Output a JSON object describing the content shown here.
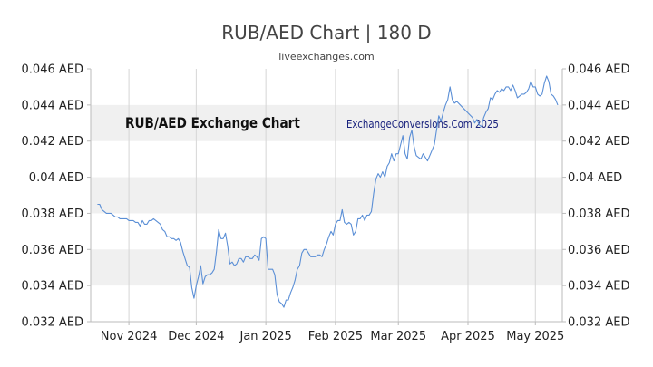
{
  "header": {
    "title": "RUB/AED Chart | 180 D",
    "subtitle": "liveexchanges.com"
  },
  "watermark": {
    "left": "RUB/AED Exchange Chart",
    "right": "ExchangeConversions.Com 2025"
  },
  "colors": {
    "line": "#5b8fd6",
    "band": "#f0f0f0",
    "grid": "#d6d6d6",
    "axis": "#bbbbbb"
  },
  "chart_data": {
    "type": "line",
    "title": "RUB/AED Chart | 180 D",
    "xlabel": "",
    "ylabel": "",
    "ylim": [
      0.032,
      0.046
    ],
    "grid": true,
    "legend": "none",
    "y_ticks": [
      {
        "value": 0.046,
        "label": "0.046 AED"
      },
      {
        "value": 0.044,
        "label": "0.044 AED"
      },
      {
        "value": 0.042,
        "label": "0.042 AED"
      },
      {
        "value": 0.04,
        "label": "0.04 AED"
      },
      {
        "value": 0.038,
        "label": "0.038 AED"
      },
      {
        "value": 0.036,
        "label": "0.036 AED"
      },
      {
        "value": 0.034,
        "label": "0.034 AED"
      },
      {
        "value": 0.032,
        "label": "0.032 AED"
      }
    ],
    "x_ticks": [
      {
        "date": "2024-11-01",
        "label": "Nov 2024"
      },
      {
        "date": "2024-12-01",
        "label": "Dec 2024"
      },
      {
        "date": "2025-01-01",
        "label": "Jan 2025"
      },
      {
        "date": "2025-02-01",
        "label": "Feb 2025"
      },
      {
        "date": "2025-03-01",
        "label": "Mar 2025"
      },
      {
        "date": "2025-04-01",
        "label": "Apr 2025"
      },
      {
        "date": "2025-05-01",
        "label": "May 2025"
      }
    ],
    "xlim": [
      "2024-10-15",
      "2025-05-13"
    ],
    "series": [
      {
        "points": [
          [
            "2024-10-18",
            0.0385
          ],
          [
            "2024-10-19",
            0.0385
          ],
          [
            "2024-10-20",
            0.0382
          ],
          [
            "2024-10-21",
            0.0381
          ],
          [
            "2024-10-22",
            0.038
          ],
          [
            "2024-10-23",
            0.038
          ],
          [
            "2024-10-24",
            0.038
          ],
          [
            "2024-10-25",
            0.0379
          ],
          [
            "2024-10-26",
            0.0378
          ],
          [
            "2024-10-27",
            0.0378
          ],
          [
            "2024-10-28",
            0.0377
          ],
          [
            "2024-10-29",
            0.0377
          ],
          [
            "2024-10-30",
            0.0377
          ],
          [
            "2024-10-31",
            0.0377
          ],
          [
            "2024-11-01",
            0.0376
          ],
          [
            "2024-11-02",
            0.0376
          ],
          [
            "2024-11-03",
            0.0376
          ],
          [
            "2024-11-04",
            0.0375
          ],
          [
            "2024-11-05",
            0.0375
          ],
          [
            "2024-11-06",
            0.0373
          ],
          [
            "2024-11-07",
            0.0376
          ],
          [
            "2024-11-08",
            0.0374
          ],
          [
            "2024-11-09",
            0.0374
          ],
          [
            "2024-11-10",
            0.0376
          ],
          [
            "2024-11-11",
            0.0376
          ],
          [
            "2024-11-12",
            0.0377
          ],
          [
            "2024-11-13",
            0.0376
          ],
          [
            "2024-11-14",
            0.0375
          ],
          [
            "2024-11-15",
            0.0374
          ],
          [
            "2024-11-16",
            0.0371
          ],
          [
            "2024-11-17",
            0.037
          ],
          [
            "2024-11-18",
            0.0367
          ],
          [
            "2024-11-19",
            0.0367
          ],
          [
            "2024-11-20",
            0.0366
          ],
          [
            "2024-11-21",
            0.0366
          ],
          [
            "2024-11-22",
            0.0365
          ],
          [
            "2024-11-23",
            0.0366
          ],
          [
            "2024-11-24",
            0.0364
          ],
          [
            "2024-11-25",
            0.0359
          ],
          [
            "2024-11-26",
            0.0355
          ],
          [
            "2024-11-27",
            0.0351
          ],
          [
            "2024-11-28",
            0.035
          ],
          [
            "2024-11-29",
            0.0339
          ],
          [
            "2024-11-30",
            0.0333
          ],
          [
            "2024-12-01",
            0.034
          ],
          [
            "2024-12-02",
            0.0345
          ],
          [
            "2024-12-03",
            0.0351
          ],
          [
            "2024-12-04",
            0.0341
          ],
          [
            "2024-12-05",
            0.0345
          ],
          [
            "2024-12-06",
            0.0346
          ],
          [
            "2024-12-07",
            0.0346
          ],
          [
            "2024-12-08",
            0.0347
          ],
          [
            "2024-12-09",
            0.0349
          ],
          [
            "2024-12-10",
            0.0359
          ],
          [
            "2024-12-11",
            0.0371
          ],
          [
            "2024-12-12",
            0.0366
          ],
          [
            "2024-12-13",
            0.0366
          ],
          [
            "2024-12-14",
            0.0369
          ],
          [
            "2024-12-15",
            0.0362
          ],
          [
            "2024-12-16",
            0.0352
          ],
          [
            "2024-12-17",
            0.0353
          ],
          [
            "2024-12-18",
            0.0351
          ],
          [
            "2024-12-19",
            0.0352
          ],
          [
            "2024-12-20",
            0.0355
          ],
          [
            "2024-12-21",
            0.0355
          ],
          [
            "2024-12-22",
            0.0353
          ],
          [
            "2024-12-23",
            0.0356
          ],
          [
            "2024-12-24",
            0.0356
          ],
          [
            "2024-12-25",
            0.0355
          ],
          [
            "2024-12-26",
            0.0355
          ],
          [
            "2024-12-27",
            0.0357
          ],
          [
            "2024-12-28",
            0.0356
          ],
          [
            "2024-12-29",
            0.0354
          ],
          [
            "2024-12-30",
            0.0366
          ],
          [
            "2024-12-31",
            0.0367
          ],
          [
            "2025-01-01",
            0.0366
          ],
          [
            "2025-01-02",
            0.0349
          ],
          [
            "2025-01-03",
            0.0349
          ],
          [
            "2025-01-04",
            0.0349
          ],
          [
            "2025-01-05",
            0.0346
          ],
          [
            "2025-01-06",
            0.0335
          ],
          [
            "2025-01-07",
            0.0331
          ],
          [
            "2025-01-08",
            0.033
          ],
          [
            "2025-01-09",
            0.0328
          ],
          [
            "2025-01-10",
            0.0332
          ],
          [
            "2025-01-11",
            0.0332
          ],
          [
            "2025-01-12",
            0.0336
          ],
          [
            "2025-01-13",
            0.0339
          ],
          [
            "2025-01-14",
            0.0343
          ],
          [
            "2025-01-15",
            0.0349
          ],
          [
            "2025-01-16",
            0.0351
          ],
          [
            "2025-01-17",
            0.0358
          ],
          [
            "2025-01-18",
            0.036
          ],
          [
            "2025-01-19",
            0.036
          ],
          [
            "2025-01-20",
            0.0358
          ],
          [
            "2025-01-21",
            0.0356
          ],
          [
            "2025-01-22",
            0.0356
          ],
          [
            "2025-01-23",
            0.0356
          ],
          [
            "2025-01-24",
            0.0357
          ],
          [
            "2025-01-25",
            0.0357
          ],
          [
            "2025-01-26",
            0.0356
          ],
          [
            "2025-01-27",
            0.036
          ],
          [
            "2025-01-28",
            0.0363
          ],
          [
            "2025-01-29",
            0.0367
          ],
          [
            "2025-01-30",
            0.037
          ],
          [
            "2025-01-31",
            0.0368
          ],
          [
            "2025-02-01",
            0.0374
          ],
          [
            "2025-02-02",
            0.0376
          ],
          [
            "2025-02-03",
            0.0376
          ],
          [
            "2025-02-04",
            0.0382
          ],
          [
            "2025-02-05",
            0.0375
          ],
          [
            "2025-02-06",
            0.0374
          ],
          [
            "2025-02-07",
            0.0375
          ],
          [
            "2025-02-08",
            0.0374
          ],
          [
            "2025-02-09",
            0.0368
          ],
          [
            "2025-02-10",
            0.037
          ],
          [
            "2025-02-11",
            0.0377
          ],
          [
            "2025-02-12",
            0.0377
          ],
          [
            "2025-02-13",
            0.0379
          ],
          [
            "2025-02-14",
            0.0376
          ],
          [
            "2025-02-15",
            0.0379
          ],
          [
            "2025-02-16",
            0.0379
          ],
          [
            "2025-02-17",
            0.0381
          ],
          [
            "2025-02-18",
            0.0391
          ],
          [
            "2025-02-19",
            0.0399
          ],
          [
            "2025-02-20",
            0.0402
          ],
          [
            "2025-02-21",
            0.04
          ],
          [
            "2025-02-22",
            0.0403
          ],
          [
            "2025-02-23",
            0.04
          ],
          [
            "2025-02-24",
            0.0406
          ],
          [
            "2025-02-25",
            0.0408
          ],
          [
            "2025-02-26",
            0.0413
          ],
          [
            "2025-02-27",
            0.0409
          ],
          [
            "2025-02-28",
            0.0413
          ],
          [
            "2025-03-01",
            0.0413
          ],
          [
            "2025-03-02",
            0.0418
          ],
          [
            "2025-03-03",
            0.0423
          ],
          [
            "2025-03-04",
            0.0413
          ],
          [
            "2025-03-05",
            0.041
          ],
          [
            "2025-03-06",
            0.0422
          ],
          [
            "2025-03-07",
            0.0426
          ],
          [
            "2025-03-08",
            0.0417
          ],
          [
            "2025-03-09",
            0.0412
          ],
          [
            "2025-03-10",
            0.0411
          ],
          [
            "2025-03-11",
            0.041
          ],
          [
            "2025-03-12",
            0.0413
          ],
          [
            "2025-03-13",
            0.0411
          ],
          [
            "2025-03-14",
            0.0409
          ],
          [
            "2025-03-15",
            0.0412
          ],
          [
            "2025-03-16",
            0.0415
          ],
          [
            "2025-03-17",
            0.0418
          ],
          [
            "2025-03-18",
            0.0426
          ],
          [
            "2025-03-19",
            0.0434
          ],
          [
            "2025-03-20",
            0.0431
          ],
          [
            "2025-03-21",
            0.0436
          ],
          [
            "2025-03-22",
            0.044
          ],
          [
            "2025-03-23",
            0.0443
          ],
          [
            "2025-03-24",
            0.045
          ],
          [
            "2025-03-25",
            0.0443
          ],
          [
            "2025-03-26",
            0.0441
          ],
          [
            "2025-03-27",
            0.0442
          ],
          [
            "2025-04-03",
            0.0433
          ],
          [
            "2025-04-04",
            0.043
          ],
          [
            "2025-04-05",
            0.0432
          ],
          [
            "2025-04-06",
            0.0429
          ],
          [
            "2025-04-07",
            0.0428
          ],
          [
            "2025-04-08",
            0.0433
          ],
          [
            "2025-04-09",
            0.0436
          ],
          [
            "2025-04-10",
            0.0438
          ],
          [
            "2025-04-11",
            0.0444
          ],
          [
            "2025-04-12",
            0.0443
          ],
          [
            "2025-04-13",
            0.0446
          ],
          [
            "2025-04-14",
            0.0448
          ],
          [
            "2025-04-15",
            0.0447
          ],
          [
            "2025-04-16",
            0.0449
          ],
          [
            "2025-04-17",
            0.0448
          ],
          [
            "2025-04-18",
            0.045
          ],
          [
            "2025-04-19",
            0.045
          ],
          [
            "2025-04-20",
            0.0448
          ],
          [
            "2025-04-21",
            0.0451
          ],
          [
            "2025-04-22",
            0.0448
          ],
          [
            "2025-04-23",
            0.0444
          ],
          [
            "2025-04-24",
            0.0445
          ],
          [
            "2025-04-25",
            0.0446
          ],
          [
            "2025-04-26",
            0.0446
          ],
          [
            "2025-04-27",
            0.0447
          ],
          [
            "2025-04-28",
            0.0449
          ],
          [
            "2025-04-29",
            0.0453
          ],
          [
            "2025-04-30",
            0.045
          ],
          [
            "2025-05-01",
            0.045
          ],
          [
            "2025-05-02",
            0.0446
          ],
          [
            "2025-05-03",
            0.0445
          ],
          [
            "2025-05-04",
            0.0446
          ],
          [
            "2025-05-05",
            0.0452
          ],
          [
            "2025-05-06",
            0.0456
          ],
          [
            "2025-05-07",
            0.0453
          ],
          [
            "2025-05-08",
            0.0446
          ],
          [
            "2025-05-09",
            0.0445
          ],
          [
            "2025-05-10",
            0.0443
          ],
          [
            "2025-05-11",
            0.044
          ]
        ]
      }
    ]
  }
}
